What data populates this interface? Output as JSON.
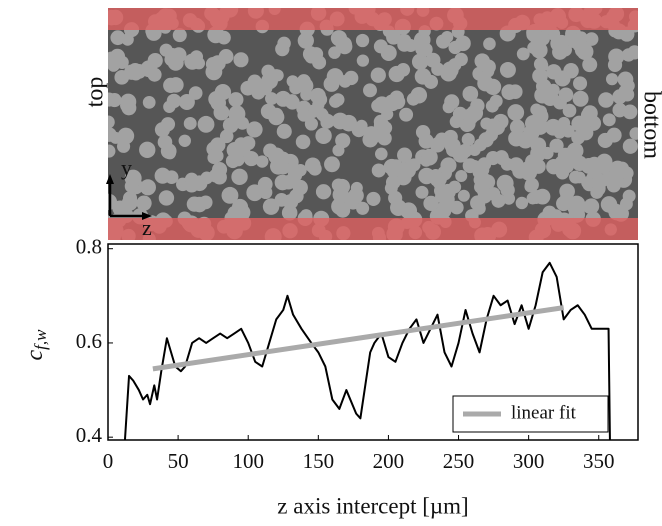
{
  "image_labels": {
    "left": "top",
    "right": "bottom",
    "axis_y": "y",
    "axis_z": "z"
  },
  "chart_data": {
    "type": "line",
    "x_label": "z axis intercept [µm]",
    "y_label": {
      "base": "c",
      "sub": "f,w"
    },
    "xlim": [
      0,
      378
    ],
    "ylim": [
      0.394,
      0.81
    ],
    "xticks": [
      0,
      50,
      100,
      150,
      200,
      250,
      300,
      350
    ],
    "yticks": [
      0.4,
      0.6,
      0.8
    ],
    "legend": "lower right",
    "series": [
      {
        "color": "#000000",
        "x": [
          12,
          15,
          18,
          22,
          25,
          28,
          30,
          33,
          35,
          38,
          42,
          45,
          48,
          52,
          55,
          60,
          65,
          70,
          75,
          80,
          85,
          90,
          95,
          100,
          105,
          110,
          115,
          120,
          125,
          128,
          132,
          138,
          145,
          150,
          155,
          160,
          165,
          170,
          177,
          180,
          183,
          187,
          190,
          195,
          200,
          205,
          210,
          215,
          220,
          225,
          230,
          235,
          240,
          245,
          250,
          255,
          260,
          265,
          270,
          275,
          280,
          285,
          290,
          295,
          300,
          305,
          310,
          315,
          320,
          325,
          330,
          335,
          340,
          345,
          355,
          357,
          358
        ],
        "values": [
          0.39,
          0.53,
          0.52,
          0.5,
          0.48,
          0.49,
          0.47,
          0.51,
          0.48,
          0.54,
          0.61,
          0.58,
          0.55,
          0.54,
          0.55,
          0.6,
          0.61,
          0.6,
          0.61,
          0.62,
          0.61,
          0.62,
          0.63,
          0.6,
          0.56,
          0.55,
          0.6,
          0.65,
          0.67,
          0.7,
          0.66,
          0.63,
          0.6,
          0.58,
          0.55,
          0.48,
          0.46,
          0.5,
          0.45,
          0.44,
          0.5,
          0.58,
          0.6,
          0.62,
          0.57,
          0.56,
          0.6,
          0.63,
          0.65,
          0.6,
          0.63,
          0.66,
          0.58,
          0.55,
          0.6,
          0.67,
          0.62,
          0.58,
          0.65,
          0.7,
          0.68,
          0.69,
          0.64,
          0.68,
          0.63,
          0.68,
          0.75,
          0.77,
          0.74,
          0.65,
          0.67,
          0.68,
          0.66,
          0.63,
          0.63,
          0.63,
          0.39
        ]
      },
      {
        "name": "linear fit",
        "color": "#aaaaaa",
        "x": [
          32,
          325
        ],
        "values": [
          0.545,
          0.675
        ]
      }
    ]
  }
}
